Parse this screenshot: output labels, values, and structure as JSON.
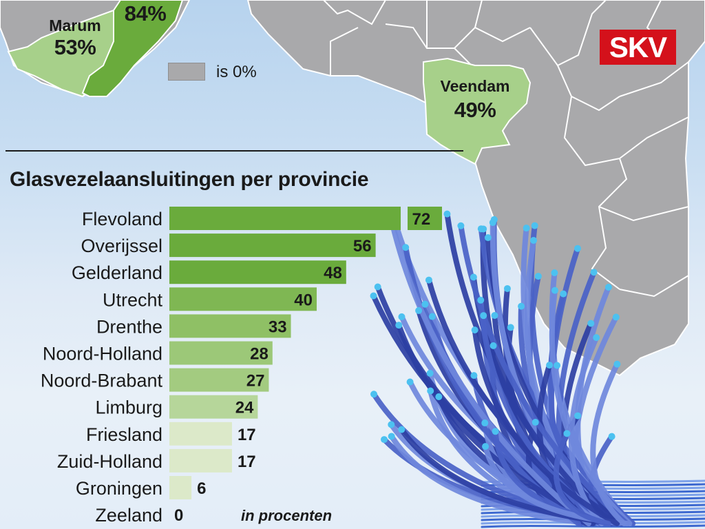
{
  "map": {
    "legend_text": "is 0%",
    "labels": [
      {
        "name": "Marum",
        "pct": "53%"
      },
      {
        "name": "",
        "pct": "84%"
      },
      {
        "name": "Veendam",
        "pct": "49%"
      }
    ]
  },
  "logo": "SKV",
  "chart_data": {
    "type": "bar",
    "orientation": "horizontal",
    "title": "Glasvezelaansluitingen per provincie",
    "categories": [
      "Flevoland",
      "Overijssel",
      "Gelderland",
      "Utrecht",
      "Drenthe",
      "Noord-Holland",
      "Noord-Brabant",
      "Limburg",
      "Friesland",
      "Zuid-Holland",
      "Groningen",
      "Zeeland"
    ],
    "values": [
      72,
      56,
      48,
      40,
      33,
      28,
      27,
      24,
      17,
      17,
      6,
      0
    ],
    "data_labels": [
      "72",
      "56",
      "48",
      "40",
      "33",
      "28",
      "27",
      "24",
      "17",
      "17",
      "6",
      "0"
    ],
    "unit_note": "in procenten",
    "colors": [
      "#6aab3c",
      "#6aab3c",
      "#6aab3c",
      "#7fb753",
      "#8fc065",
      "#9cc878",
      "#a3cb80",
      "#b6d69a",
      "#dce9c9",
      "#dce9c9",
      "#dce9c9",
      "#dce9c9"
    ],
    "grid": false,
    "legend": "none"
  },
  "colors": {
    "map_gray": "#a9a9ab",
    "light_green": "#a7d08a",
    "dark_green": "#6aab3c",
    "brand_red": "#d4111b"
  }
}
